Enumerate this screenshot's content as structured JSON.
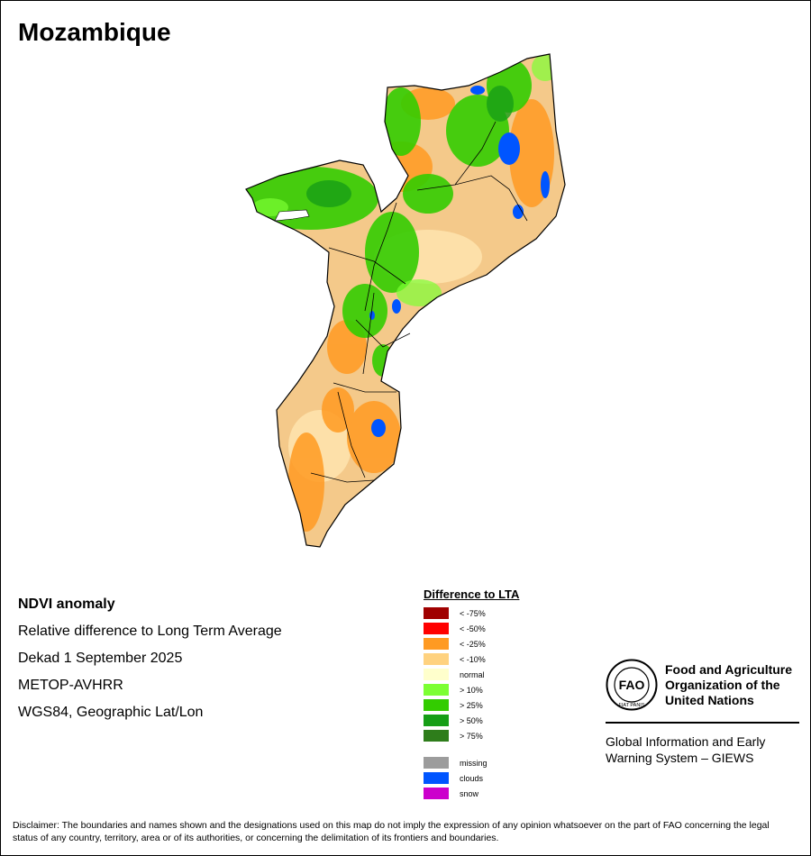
{
  "title": "Mozambique",
  "info_lines": [
    "NDVI anomaly",
    "Relative difference to Long Term Average",
    "Dekad 1 September 2025",
    "METOP-AVHRR",
    "WGS84, Geographic Lat/Lon"
  ],
  "legend": {
    "title": "Difference to LTA",
    "items": [
      {
        "label": "< -75%",
        "color": "#a00000"
      },
      {
        "label": "< -50%",
        "color": "#ff0000"
      },
      {
        "label": "< -25%",
        "color": "#ff9a22"
      },
      {
        "label": "< -10%",
        "color": "#ffd27f"
      },
      {
        "label": "normal",
        "color": "#ffffcc"
      },
      {
        "label": "> 10%",
        "color": "#7cff33"
      },
      {
        "label": "> 25%",
        "color": "#33cc00"
      },
      {
        "label": "> 50%",
        "color": "#169e16"
      },
      {
        "label": "> 75%",
        "color": "#2e7d1b"
      }
    ],
    "extra_items": [
      {
        "label": "missing",
        "color": "#9c9c9c"
      },
      {
        "label": "clouds",
        "color": "#0055ff"
      },
      {
        "label": "snow",
        "color": "#cc00cc"
      }
    ]
  },
  "organization": {
    "logo_text": "FAO",
    "logo_motto": "FIAT PANIS",
    "name_lines": [
      "Food and Agriculture",
      "Organization of the",
      "United Nations"
    ],
    "program_lines": [
      "Global Information and Early",
      "Warning System – GIEWS"
    ]
  },
  "disclaimer": "Disclaimer: The boundaries and names shown and the designations used on this map do not imply the expression of any opinion whatsoever on the part of FAO concerning the legal status of any country, territory, area or of its authorities, or concerning the delimitation of its frontiers and boundaries."
}
